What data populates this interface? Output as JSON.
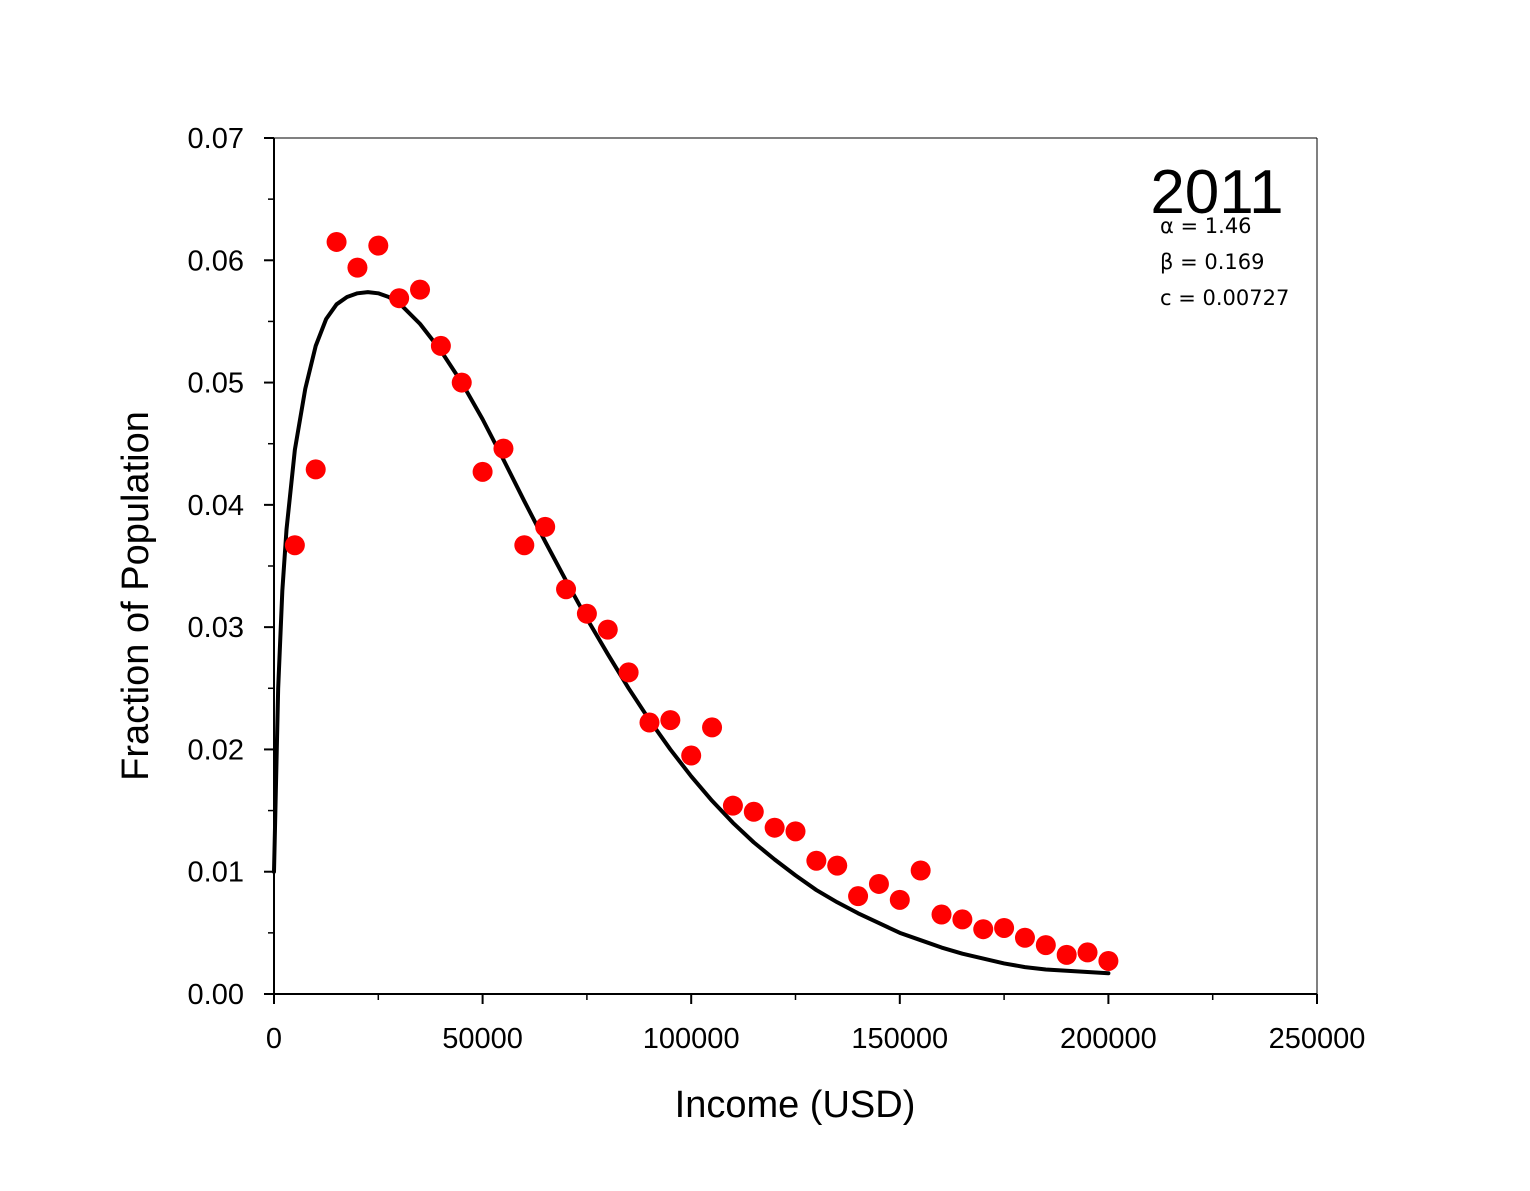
{
  "chart_data": {
    "type": "scatter",
    "xlabel": "Income (USD)",
    "ylabel": "Fraction of Population",
    "xlim": [
      0,
      250000
    ],
    "ylim": [
      0,
      0.07
    ],
    "x_ticks": [
      0,
      50000,
      100000,
      150000,
      200000,
      250000
    ],
    "y_ticks": [
      0.0,
      0.01,
      0.02,
      0.03,
      0.04,
      0.05,
      0.06,
      0.07
    ],
    "x_tick_labels": [
      "0",
      "50000",
      "100000",
      "150000",
      "200000",
      "250000"
    ],
    "y_tick_labels": [
      "0.00",
      "0.01",
      "0.02",
      "0.03",
      "0.04",
      "0.05",
      "0.06",
      "0.07"
    ],
    "grid": false,
    "annotations": {
      "year": "2011",
      "alpha": "α = 1.46",
      "beta": "β = 0.169",
      "c": "c = 0.00727"
    },
    "series": [
      {
        "type": "scatter",
        "color": "#ff0000",
        "x": [
          5000,
          10000,
          15000,
          20000,
          25000,
          30000,
          35000,
          40000,
          45000,
          50000,
          55000,
          60000,
          65000,
          70000,
          75000,
          80000,
          85000,
          90000,
          95000,
          100000,
          105000,
          110000,
          115000,
          120000,
          125000,
          130000,
          135000,
          140000,
          145000,
          150000,
          155000,
          160000,
          165000,
          170000,
          175000,
          180000,
          185000,
          190000,
          195000,
          200000
        ],
        "y": [
          0.0367,
          0.0429,
          0.0615,
          0.0594,
          0.0612,
          0.0569,
          0.0576,
          0.053,
          0.05,
          0.0427,
          0.0446,
          0.0367,
          0.0382,
          0.0331,
          0.0311,
          0.0298,
          0.0263,
          0.0222,
          0.0224,
          0.0195,
          0.0218,
          0.0154,
          0.0149,
          0.0136,
          0.0133,
          0.0109,
          0.0105,
          0.008,
          0.009,
          0.0077,
          0.0101,
          0.0065,
          0.0061,
          0.0053,
          0.0054,
          0.0046,
          0.004,
          0.0032,
          0.0034,
          0.0027
        ]
      },
      {
        "type": "line",
        "color": "#000000",
        "x": [
          0,
          1000,
          2000,
          3000,
          5000,
          7500,
          10000,
          12500,
          15000,
          17500,
          20000,
          22500,
          25000,
          27500,
          30000,
          35000,
          40000,
          45000,
          50000,
          55000,
          60000,
          65000,
          70000,
          75000,
          80000,
          85000,
          90000,
          95000,
          100000,
          105000,
          110000,
          115000,
          120000,
          125000,
          130000,
          135000,
          140000,
          145000,
          150000,
          155000,
          160000,
          165000,
          170000,
          175000,
          180000,
          185000,
          190000,
          195000,
          200000
        ],
        "y": [
          0.01,
          0.025,
          0.033,
          0.038,
          0.0445,
          0.0495,
          0.053,
          0.0552,
          0.0564,
          0.057,
          0.0573,
          0.0574,
          0.0573,
          0.057,
          0.0565,
          0.0548,
          0.0526,
          0.05,
          0.047,
          0.0437,
          0.0403,
          0.037,
          0.0338,
          0.0307,
          0.0278,
          0.025,
          0.0224,
          0.02,
          0.0178,
          0.0158,
          0.014,
          0.0124,
          0.011,
          0.0097,
          0.0085,
          0.0075,
          0.0066,
          0.0058,
          0.005,
          0.0044,
          0.0038,
          0.0033,
          0.0029,
          0.0025,
          0.0022,
          0.002,
          0.0019,
          0.0018,
          0.0017
        ]
      }
    ]
  }
}
